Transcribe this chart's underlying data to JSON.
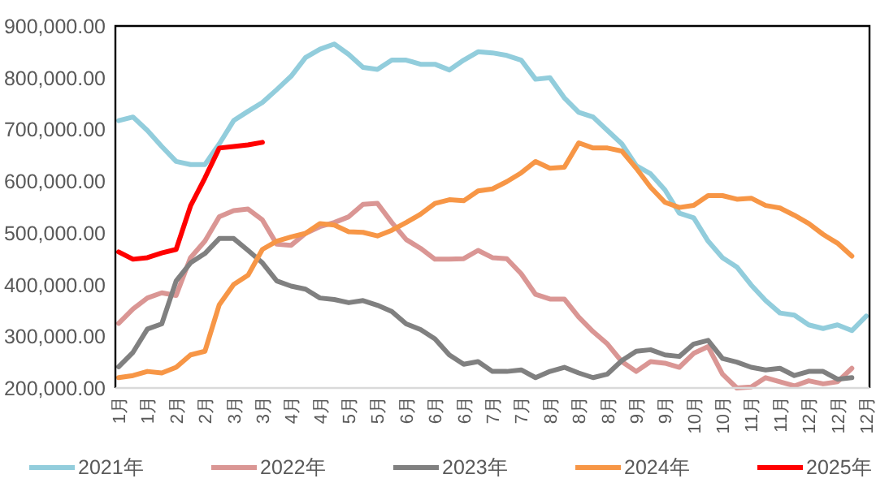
{
  "chart_data": {
    "type": "line",
    "categories": [
      "1月",
      null,
      "1月",
      null,
      "2月",
      null,
      "2月",
      null,
      "3月",
      null,
      "3月",
      null,
      "4月",
      null,
      "4月",
      null,
      "5月",
      null,
      "5月",
      null,
      "6月",
      null,
      "6月",
      null,
      "6月",
      null,
      "7月",
      null,
      "7月",
      null,
      "8月",
      null,
      "8月",
      null,
      "8月",
      null,
      "9月",
      null,
      "9月",
      null,
      "10月",
      null,
      "10月",
      null,
      "11月",
      null,
      "11月",
      null,
      "12月",
      null,
      "12月",
      null,
      "12月"
    ],
    "series": [
      {
        "name": "2021年",
        "color": "#92cddc",
        "values": [
          717000,
          724000,
          698000,
          667000,
          638000,
          632000,
          632000,
          672000,
          717000,
          735000,
          752000,
          777000,
          803000,
          839000,
          855000,
          865000,
          845000,
          820000,
          816000,
          834000,
          834000,
          826000,
          826000,
          815000,
          834000,
          850000,
          848000,
          843000,
          834000,
          797000,
          800000,
          761000,
          733000,
          724000,
          698000,
          672000,
          630000,
          614000,
          583000,
          538000,
          529000,
          484000,
          452000,
          434000,
          399000,
          369000,
          345000,
          341000,
          322000,
          315000,
          322000,
          311000,
          339000
        ]
      },
      {
        "name": "2022年",
        "color": "#da9694",
        "values": [
          325000,
          353000,
          374000,
          384000,
          379000,
          452000,
          484000,
          531000,
          543000,
          546000,
          525000,
          478000,
          476000,
          499000,
          512000,
          520000,
          531000,
          555000,
          557000,
          520000,
          487000,
          470000,
          449000,
          449000,
          450000,
          466000,
          452000,
          450000,
          421000,
          381000,
          372000,
          372000,
          337000,
          309000,
          285000,
          251000,
          232000,
          251000,
          248000,
          240000,
          267000,
          280000,
          227000,
          200000,
          202000,
          220000,
          212000,
          204000,
          214000,
          208000,
          212000,
          238000,
          null
        ]
      },
      {
        "name": "2023年",
        "color": "#808080",
        "values": [
          241000,
          269000,
          314000,
          324000,
          407000,
          442000,
          460000,
          489000,
          489000,
          466000,
          442000,
          407000,
          397000,
          391000,
          374000,
          371000,
          365000,
          369000,
          360000,
          348000,
          324000,
          313000,
          295000,
          264000,
          246000,
          251000,
          232000,
          232000,
          235000,
          220000,
          232000,
          240000,
          229000,
          220000,
          227000,
          253000,
          271000,
          274000,
          264000,
          261000,
          285000,
          292000,
          257000,
          250000,
          240000,
          235000,
          238000,
          224000,
          232000,
          232000,
          217000,
          220000,
          null
        ]
      },
      {
        "name": "2024年",
        "color": "#f79646",
        "values": [
          220000,
          224000,
          232000,
          229000,
          240000,
          264000,
          271000,
          361000,
          400000,
          418000,
          468000,
          484000,
          492000,
          499000,
          518000,
          515000,
          502000,
          501000,
          494000,
          505000,
          520000,
          536000,
          557000,
          564000,
          562000,
          581000,
          585000,
          599000,
          616000,
          638000,
          625000,
          627000,
          674000,
          664000,
          664000,
          658000,
          625000,
          588000,
          559000,
          549000,
          553000,
          572000,
          572000,
          565000,
          567000,
          553000,
          548000,
          534000,
          518000,
          497000,
          480000,
          455000,
          null
        ]
      },
      {
        "name": "2025年",
        "color": "#ff0000",
        "values": [
          463000,
          449000,
          452000,
          461000,
          468000,
          552000,
          606000,
          664000,
          667000,
          670000,
          675000,
          null,
          null,
          null,
          null,
          null,
          null,
          null,
          null,
          null,
          null,
          null,
          null,
          null,
          null,
          null,
          null,
          null,
          null,
          null,
          null,
          null,
          null,
          null,
          null,
          null,
          null,
          null,
          null,
          null,
          null,
          null,
          null,
          null,
          null,
          null,
          null,
          null,
          null,
          null,
          null,
          null,
          null
        ]
      }
    ],
    "ylim": [
      200000,
      900000
    ],
    "yticks": [
      {
        "value": 200000,
        "label": "200,000.00"
      },
      {
        "value": 300000,
        "label": "300,000.00"
      },
      {
        "value": 400000,
        "label": "400,000.00"
      },
      {
        "value": 500000,
        "label": "500,000.00"
      },
      {
        "value": 600000,
        "label": "600,000.00"
      },
      {
        "value": 700000,
        "label": "700,000.00"
      },
      {
        "value": 800000,
        "label": "800,000.00"
      },
      {
        "value": 900000,
        "label": "900,000.00"
      }
    ],
    "legend": "bottom",
    "marker": "none",
    "line_style": "solid"
  }
}
